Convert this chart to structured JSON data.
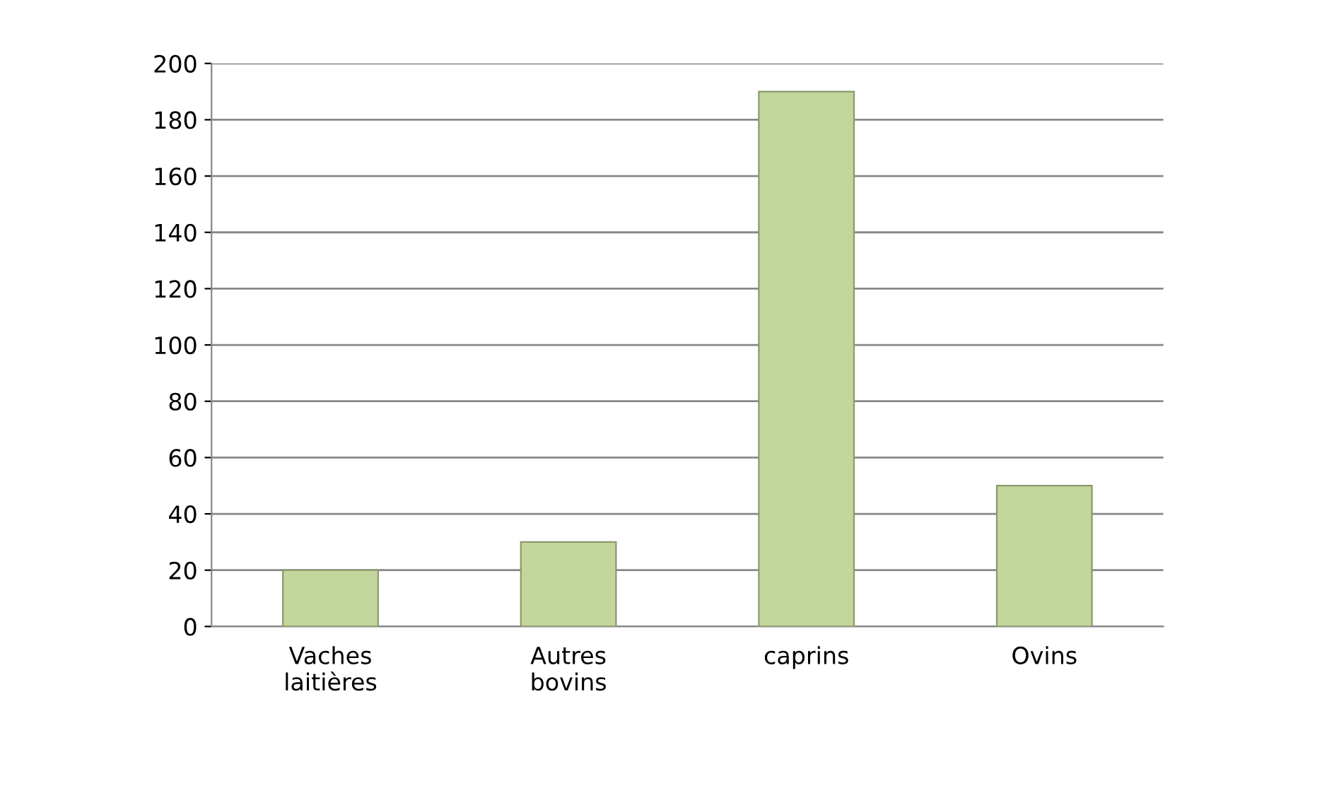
{
  "chart_data": {
    "type": "bar",
    "categories": [
      "Vaches\nlaitières",
      "Autres\nbovins",
      "caprins",
      "Ovins"
    ],
    "values": [
      20,
      30,
      190,
      50
    ],
    "color": "#c3d69b",
    "ylim": [
      0,
      200
    ],
    "yticks": [
      0,
      20,
      40,
      60,
      80,
      100,
      120,
      140,
      160,
      180,
      200
    ],
    "grid": "y"
  }
}
